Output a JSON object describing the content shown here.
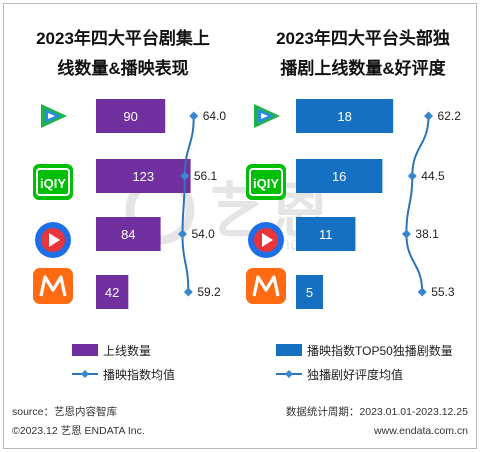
{
  "left_panel": {
    "title_line1": "2023年四大平台剧集上",
    "title_line2": "线数量&播映表现",
    "legend_bar": "上线数量",
    "legend_line": "播映指数均值"
  },
  "right_panel": {
    "title_line1": "2023年四大平台头部独",
    "title_line2": "播剧上线数量&好评度",
    "legend_bar": "播映指数TOP50独播剧数量",
    "legend_line": "独播剧好评度均值"
  },
  "footer": {
    "source": "source：艺恩内容智库",
    "copyright": "©2023.12 艺恩 ENDATA Inc.",
    "date_range": "数据统计周期：2023.01.01-2023.12.25",
    "website": "www.endata.com.cn"
  },
  "watermark": {
    "main": "艺恩",
    "sub": "endata"
  },
  "platforms": [
    {
      "name": "腾讯视频",
      "icon": "tencent-video-icon"
    },
    {
      "name": "爱奇艺",
      "icon": "iqiyi-icon"
    },
    {
      "name": "优酷",
      "icon": "youku-icon"
    },
    {
      "name": "芒果TV",
      "icon": "mango-tv-icon"
    }
  ],
  "colors": {
    "left_bar": "#7030a0",
    "right_bar": "#1570c1",
    "line": "#2e75b6",
    "marker": "#3a86cf"
  },
  "chart_data": [
    {
      "type": "bar",
      "categories": [
        "腾讯视频",
        "爱奇艺",
        "优酷",
        "芒果TV"
      ],
      "series": [
        {
          "name": "上线数量",
          "type": "bar",
          "values": [
            90,
            123,
            84,
            42
          ]
        },
        {
          "name": "播映指数均值",
          "type": "line",
          "values": [
            64.0,
            56.1,
            54.0,
            59.2
          ]
        }
      ],
      "value_labels": [
        "64.0",
        "56.1",
        "54.0",
        "59.2"
      ],
      "bar_range": [
        0,
        130
      ],
      "line_range": [
        50,
        66
      ],
      "legend_position": "bottom"
    },
    {
      "type": "bar",
      "categories": [
        "腾讯视频",
        "爱奇艺",
        "优酷",
        "芒果TV"
      ],
      "series": [
        {
          "name": "播映指数TOP50独播剧数量",
          "type": "bar",
          "values": [
            18,
            16,
            11,
            5
          ]
        },
        {
          "name": "独播剧好评度均值",
          "type": "line",
          "values": [
            62.2,
            44.5,
            38.1,
            55.3
          ]
        }
      ],
      "value_labels": [
        "62.2",
        "44.5",
        "38.1",
        "55.3"
      ],
      "bar_range": [
        0,
        20
      ],
      "line_range": [
        30,
        66
      ],
      "legend_position": "bottom"
    }
  ]
}
